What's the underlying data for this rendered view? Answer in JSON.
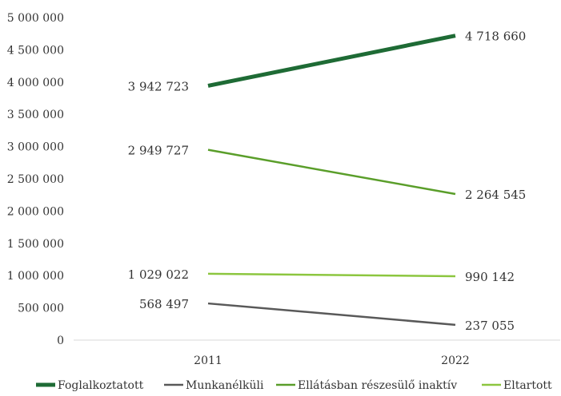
{
  "chart_data": {
    "type": "line",
    "categories": [
      "2011",
      "2022"
    ],
    "ylim": [
      0,
      5000000
    ],
    "ytick_step": 500000,
    "ytick_labels": [
      "0",
      "500 000",
      "1 000 000",
      "1 500 000",
      "2 000 000",
      "2 500 000",
      "3 000 000",
      "3 500 000",
      "4 000 000",
      "4 500 000",
      "5 000 000"
    ],
    "grid": false,
    "legend_position": "bottom",
    "series": [
      {
        "name": "Foglalkoztatott",
        "values": [
          3942723,
          4718660
        ],
        "labels": [
          "3 942 723",
          "4 718 660"
        ],
        "color": "#1e6b35",
        "bold": true
      },
      {
        "name": "Munkanélküli",
        "values": [
          568497,
          237055
        ],
        "labels": [
          "568 497",
          "237 055"
        ],
        "color": "#595959",
        "bold": false
      },
      {
        "name": "Ellátásban részesülő inaktív",
        "values": [
          2949727,
          2264545
        ],
        "labels": [
          "2 949 727",
          "2 264 545"
        ],
        "color": "#5a9e2a",
        "bold": false
      },
      {
        "name": "Eltartott",
        "values": [
          1029022,
          990142
        ],
        "labels": [
          "1 029 022",
          "990 142"
        ],
        "color": "#8cc63f",
        "bold": false
      }
    ]
  }
}
